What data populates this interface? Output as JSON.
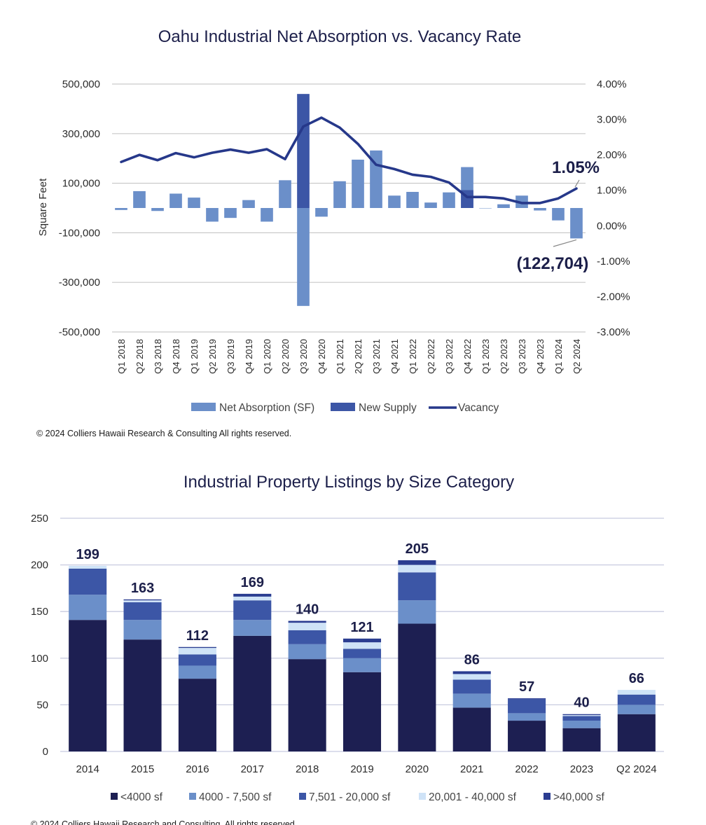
{
  "chart_data": [
    {
      "type": "bar",
      "title": "Oahu Industrial Net Absorption vs. Vacancy Rate",
      "ylabel": "Square Feet",
      "ylim": [
        -500000,
        500000
      ],
      "y_ticks": [
        "500,000",
        "300,000",
        "100,000",
        "-100,000",
        "-300,000",
        "-500,000"
      ],
      "y2lim": [
        -3.0,
        4.0
      ],
      "y2_ticks": [
        "4.00%",
        "3.00%",
        "2.00%",
        "1.00%",
        "0.00%",
        "-1.00%",
        "-2.00%",
        "-3.00%"
      ],
      "categories": [
        "Q1 2018",
        "Q2 2018",
        "Q3 2018",
        "Q4 2018",
        "Q1 2019",
        "Q2 2019",
        "Q3 2019",
        "Q4 2019",
        "Q1 2020",
        "Q2 2020",
        "Q3 2020",
        "Q4 2020",
        "Q1 2021",
        "2Q 2021",
        "Q3 2021",
        "Q4 2021",
        "Q1 2022",
        "Q2 2022",
        "Q3 2022",
        "Q4 2022",
        "Q1 2023",
        "Q2 2023",
        "Q3 2023",
        "Q4 2023",
        "Q1 2024",
        "Q2 2024"
      ],
      "series": [
        {
          "name": "Net Absorption (SF)",
          "kind": "bar",
          "color": "#6b8fc9",
          "values": [
            -8000,
            68000,
            -12000,
            58000,
            42000,
            -55000,
            -40000,
            32000,
            -55000,
            112000,
            -395000,
            -35000,
            108000,
            195000,
            232000,
            50000,
            65000,
            22000,
            63000,
            165000,
            0,
            15000,
            50000,
            -10000,
            -50000,
            -122704
          ]
        },
        {
          "name": "New Supply",
          "kind": "bar",
          "color": "#3c56a6",
          "values": [
            0,
            0,
            0,
            0,
            0,
            0,
            0,
            0,
            0,
            0,
            460000,
            0,
            0,
            0,
            0,
            0,
            0,
            0,
            0,
            72000,
            0,
            0,
            0,
            0,
            0,
            0
          ]
        },
        {
          "name": "Vacancy",
          "kind": "line",
          "color": "#26388a",
          "axis": "right",
          "values": [
            1.8,
            2.0,
            1.85,
            2.05,
            1.93,
            2.06,
            2.15,
            2.06,
            2.16,
            1.88,
            2.8,
            3.05,
            2.77,
            2.31,
            1.72,
            1.6,
            1.44,
            1.38,
            1.22,
            0.81,
            0.81,
            0.77,
            0.64,
            0.64,
            0.77,
            1.05
          ]
        }
      ],
      "annotations": {
        "vacancy_last": "1.05%",
        "absorption_last": "(122,704)"
      },
      "legend": "bottom",
      "copyright": "© 2024 Colliers Hawaii Research & Consulting All rights reserved."
    },
    {
      "type": "bar",
      "stacked": true,
      "title": "Industrial Property Listings by Size Category",
      "ylim": [
        0,
        250
      ],
      "y_ticks": [
        "250",
        "200",
        "150",
        "100",
        "50",
        "0"
      ],
      "categories": [
        "2014",
        "2015",
        "2016",
        "2017",
        "2018",
        "2019",
        "2020",
        "2021",
        "2022",
        "2023",
        "Q2 2024"
      ],
      "totals": [
        "199",
        "163",
        "112",
        "169",
        "140",
        "121",
        "205",
        "86",
        "57",
        "40",
        "66"
      ],
      "series": [
        {
          "name": "<4000 sf",
          "color": "#1d1f52",
          "values": [
            141,
            120,
            78,
            124,
            99,
            85,
            137,
            47,
            33,
            25,
            40
          ]
        },
        {
          "name": "4000 - 7,500 sf",
          "color": "#6b8fc9",
          "values": [
            27,
            21,
            14,
            17,
            16,
            15,
            25,
            15,
            8,
            8,
            10
          ]
        },
        {
          "name": "7,501 - 20,000 sf",
          "color": "#3c56a6",
          "values": [
            28,
            19,
            12,
            21,
            15,
            10,
            30,
            15,
            15,
            5,
            11
          ]
        },
        {
          "name": "20,001 - 40,000 sf",
          "color": "#cfe3f7",
          "values": [
            3,
            2,
            7,
            4,
            8,
            7,
            8,
            6,
            0,
            1,
            5
          ]
        },
        {
          "name": ">40,000 sf",
          "color": "#2b3d91",
          "values": [
            0,
            1,
            1,
            3,
            2,
            4,
            5,
            3,
            1,
            1,
            0
          ]
        }
      ],
      "legend": "bottom",
      "copyright": "© 2024 Colliers Hawaii Research and Consulting. All rights reserved."
    }
  ]
}
